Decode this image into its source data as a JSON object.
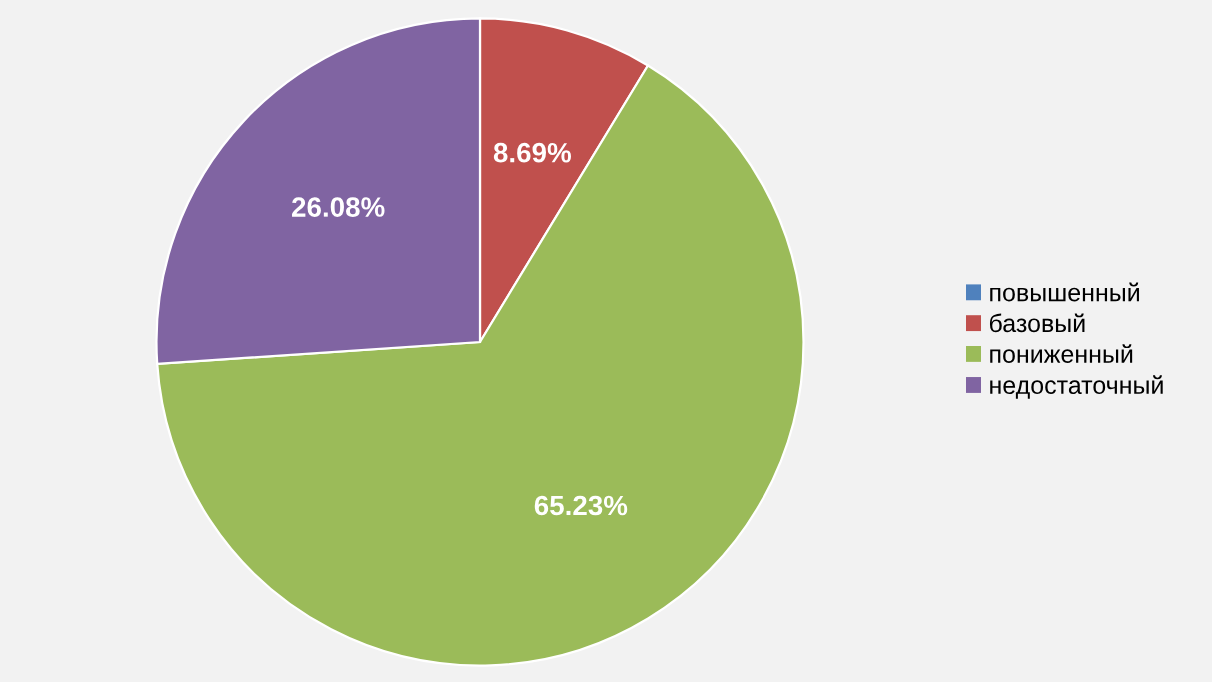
{
  "chart_data": {
    "type": "pie",
    "categories": [
      "повышенный",
      "базовый",
      "пониженный",
      "недостаточный"
    ],
    "values": [
      0,
      8.69,
      65.23,
      26.08
    ],
    "colors": [
      "#4f81bd",
      "#c0504d",
      "#9bbb59",
      "#8064a2"
    ],
    "value_labels": [
      null,
      "8.69%",
      "65.23%",
      "26.08%"
    ],
    "legend": "right"
  }
}
